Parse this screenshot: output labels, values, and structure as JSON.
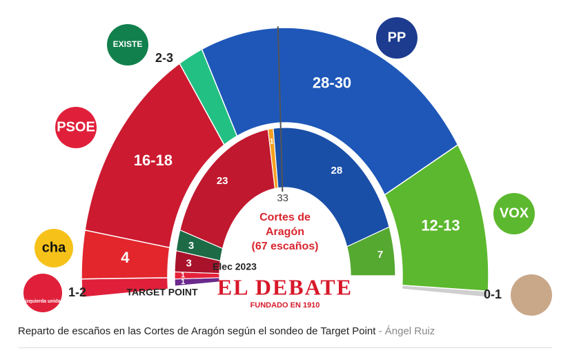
{
  "chart_data": {
    "type": "hemicycle",
    "outer": {
      "name": "TARGET POINT",
      "low": [
        1,
        4,
        16,
        2,
        28,
        12,
        0
      ],
      "high": [
        2,
        4,
        18,
        3,
        30,
        13,
        1
      ],
      "value_labels": [
        "1-2",
        "4",
        "16-18",
        "2-3",
        "28-30",
        "12-13",
        "0-1"
      ],
      "colors": [
        "#e0203a",
        "#e2262c",
        "#cc1a30",
        "#22c083",
        "#1e57b8",
        "#5cb82e",
        "#cfcfcf"
      ]
    },
    "inner": {
      "name": "Elec 2023",
      "values": [
        1,
        1,
        3,
        3,
        23,
        1,
        28,
        7
      ],
      "colors": [
        "#6b2a8c",
        "#e5213a",
        "#a8122a",
        "#1c6a46",
        "#c0182e",
        "#f5a020",
        "#1a4fa8",
        "#55a830"
      ]
    },
    "majority": 33,
    "center_text": [
      "Cortes de",
      "Aragón",
      "(67 escaños)"
    ],
    "logo_texts": [
      "izquierda unida",
      "cha",
      "PSOE",
      "EXISTE",
      "PP",
      "VOX",
      null
    ],
    "brand": "EL DEBATE",
    "brand_subtitle": "FUNDADO EN 1910",
    "caption": "Reparto de escaños en las Cortes de Aragón según el sondeo de Target Point",
    "caption_separator": "-",
    "author": "Ángel Ruiz"
  }
}
